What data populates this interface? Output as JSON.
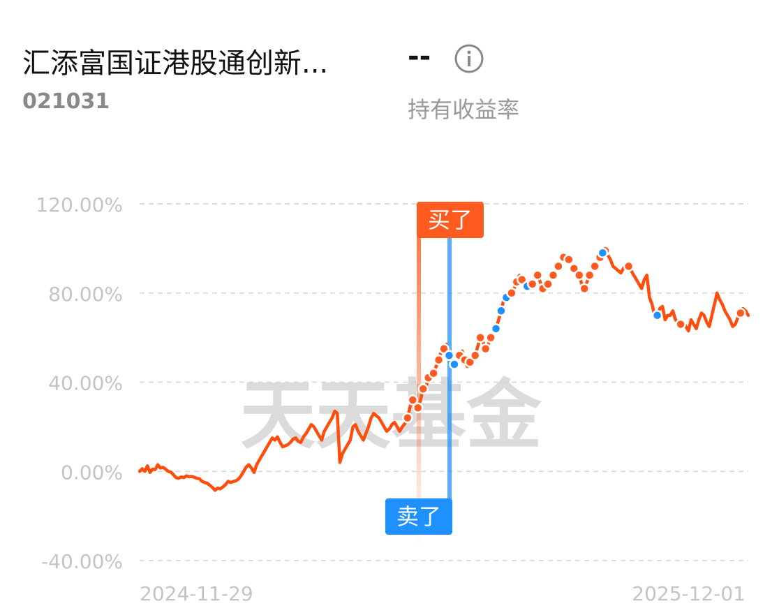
{
  "header": {
    "fund_name": "汇添富国证港股通创新...",
    "value": "--",
    "fund_code": "021031",
    "metric_label": "持有收益率"
  },
  "watermark": "天天基金",
  "markers": {
    "buy_label": "买了",
    "sell_label": "卖了"
  },
  "colors": {
    "line": "#ff4d0d",
    "buy": "#ff5a1f",
    "sell": "#1e90ff",
    "grid": "#dddddd",
    "axis_text": "#c4c4c4"
  },
  "chart_data": {
    "type": "line",
    "title": "持有收益率",
    "x_start_label": "2024-11-29",
    "x_end_label": "2025-12-01",
    "yticks": [
      "120.00%",
      "80.00%",
      "40.00%",
      "0.00%",
      "-40.00%"
    ],
    "ylim": [
      -40,
      120
    ],
    "grid": true,
    "series": [
      {
        "values": [
          0,
          1.2,
          0,
          2.5,
          -0.5,
          1,
          0.8,
          3,
          1.5,
          1.8,
          1,
          0,
          -0.3,
          -1.5,
          -2.8,
          -3.1,
          -2.5,
          -2.8,
          -2,
          -2.4,
          -2.3,
          -2.6,
          -3.1,
          -3.3,
          -4.5,
          -5,
          -5.3,
          -6.2,
          -7.2,
          -8.5,
          -7.5,
          -7.8,
          -7,
          -6,
          -4.5,
          -5,
          -4.6,
          -4.2,
          -3.5,
          -2,
          0,
          2,
          3,
          1.5,
          -0.5,
          3,
          5,
          7,
          9,
          11,
          13,
          15,
          14,
          15.5,
          13,
          11,
          11.5,
          12,
          13,
          14.5,
          15,
          13.5,
          13,
          15.5,
          17,
          19,
          21,
          20,
          18,
          16,
          14,
          18,
          20,
          22,
          24,
          27,
          26,
          4,
          8,
          10,
          12,
          14,
          20,
          21,
          18,
          16,
          14,
          17,
          20,
          24,
          26,
          25,
          24,
          22,
          20,
          18,
          19,
          21,
          22,
          20,
          18,
          20,
          21.5,
          24,
          29,
          32,
          32,
          28.5,
          32,
          37,
          37,
          42,
          43,
          44,
          47,
          50,
          54,
          55,
          57,
          52,
          50,
          48,
          50,
          52,
          54,
          50,
          47,
          49,
          51,
          52,
          56,
          60,
          58,
          55,
          57,
          60,
          62,
          64,
          68,
          72,
          77,
          78,
          77,
          80,
          82,
          85,
          88,
          86,
          84,
          83,
          82,
          84,
          87,
          88,
          85,
          82,
          81,
          84,
          86,
          88,
          90,
          92,
          94,
          96,
          97,
          95,
          93,
          91,
          90,
          88,
          84,
          82,
          85,
          88,
          90,
          92,
          94,
          96,
          98,
          99,
          97,
          95,
          92,
          91,
          90,
          89,
          91,
          93,
          92,
          90,
          88,
          86,
          84,
          82,
          86,
          88,
          78,
          75,
          70,
          70,
          73,
          74,
          68,
          70,
          70,
          72,
          68,
          67,
          66,
          67,
          65,
          63,
          68,
          66,
          64,
          68,
          71,
          70,
          67,
          65,
          70,
          75,
          80,
          77,
          75,
          72,
          70,
          68,
          65,
          66,
          69,
          71,
          73,
          72,
          70
        ]
      }
    ]
  }
}
